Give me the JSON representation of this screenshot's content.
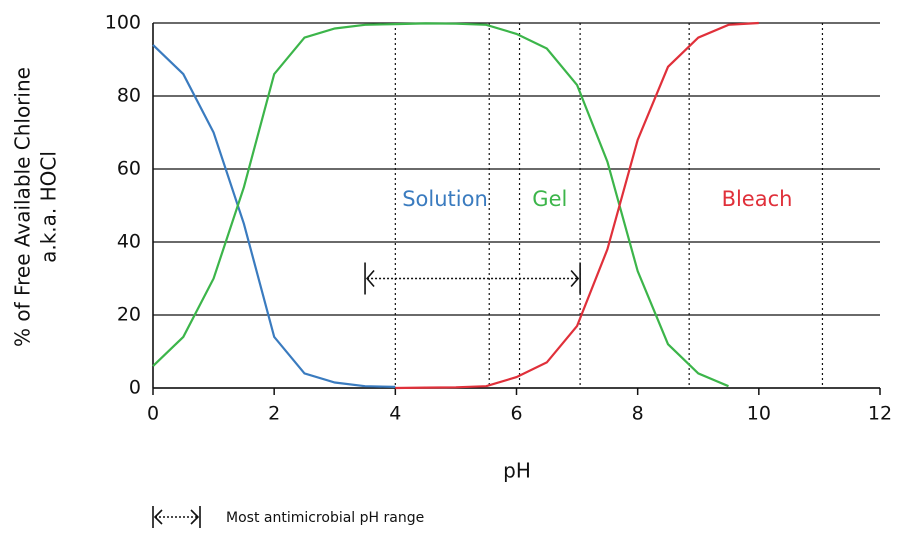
{
  "chart_data": {
    "type": "line",
    "x_label": "pH",
    "y_label": [
      "% of Free Available Chlorine",
      "a.k.a. HOCl"
    ],
    "x": [
      0,
      0.5,
      1,
      1.5,
      2,
      2.5,
      3,
      3.5,
      4,
      4.5,
      5,
      5.5,
      6,
      6.5,
      7,
      7.5,
      8,
      8.5,
      9,
      9.5,
      10
    ],
    "series": [
      {
        "color": "#3a7bbf",
        "values": [
          94,
          86,
          70,
          45,
          14,
          4,
          1.5,
          0.5,
          0.3,
          null,
          null,
          null,
          null,
          null,
          null,
          null,
          null,
          null,
          null,
          null,
          null
        ]
      },
      {
        "color": "#3cb54a",
        "values": [
          6,
          14,
          30,
          55,
          86,
          96,
          98.5,
          99.5,
          99.7,
          99.9,
          99.8,
          99.5,
          97,
          93,
          83,
          62,
          32,
          12,
          4,
          0.5,
          null
        ]
      },
      {
        "color": "#e0303a",
        "values": [
          null,
          null,
          null,
          null,
          null,
          null,
          null,
          null,
          0,
          0.1,
          0.2,
          0.5,
          3,
          7,
          17,
          38,
          68,
          88,
          96,
          99.5,
          100
        ]
      }
    ],
    "xlim": [
      0,
      12
    ],
    "xticks": [
      0,
      2,
      4,
      6,
      8,
      10,
      12
    ],
    "ylim": [
      0,
      100
    ],
    "yticks": [
      0,
      20,
      40,
      60,
      80,
      100
    ],
    "grid": true,
    "vlines": [
      4,
      5.55,
      6.05,
      7.05,
      8.85,
      11.05
    ],
    "arrow": {
      "x": [
        3.5,
        7.05
      ],
      "y": 30
    },
    "annotations": [
      {
        "text": "Solution",
        "x": 4.82,
        "y": 51.5,
        "color": "#3a7bbf"
      },
      {
        "text": "Gel",
        "x": 6.55,
        "y": 51.5,
        "color": "#3cb54a"
      },
      {
        "text": "Bleach",
        "x": 9.97,
        "y": 51.5,
        "color": "#e0303a"
      }
    ],
    "legend_text": "Most antimicrobial pH range"
  }
}
